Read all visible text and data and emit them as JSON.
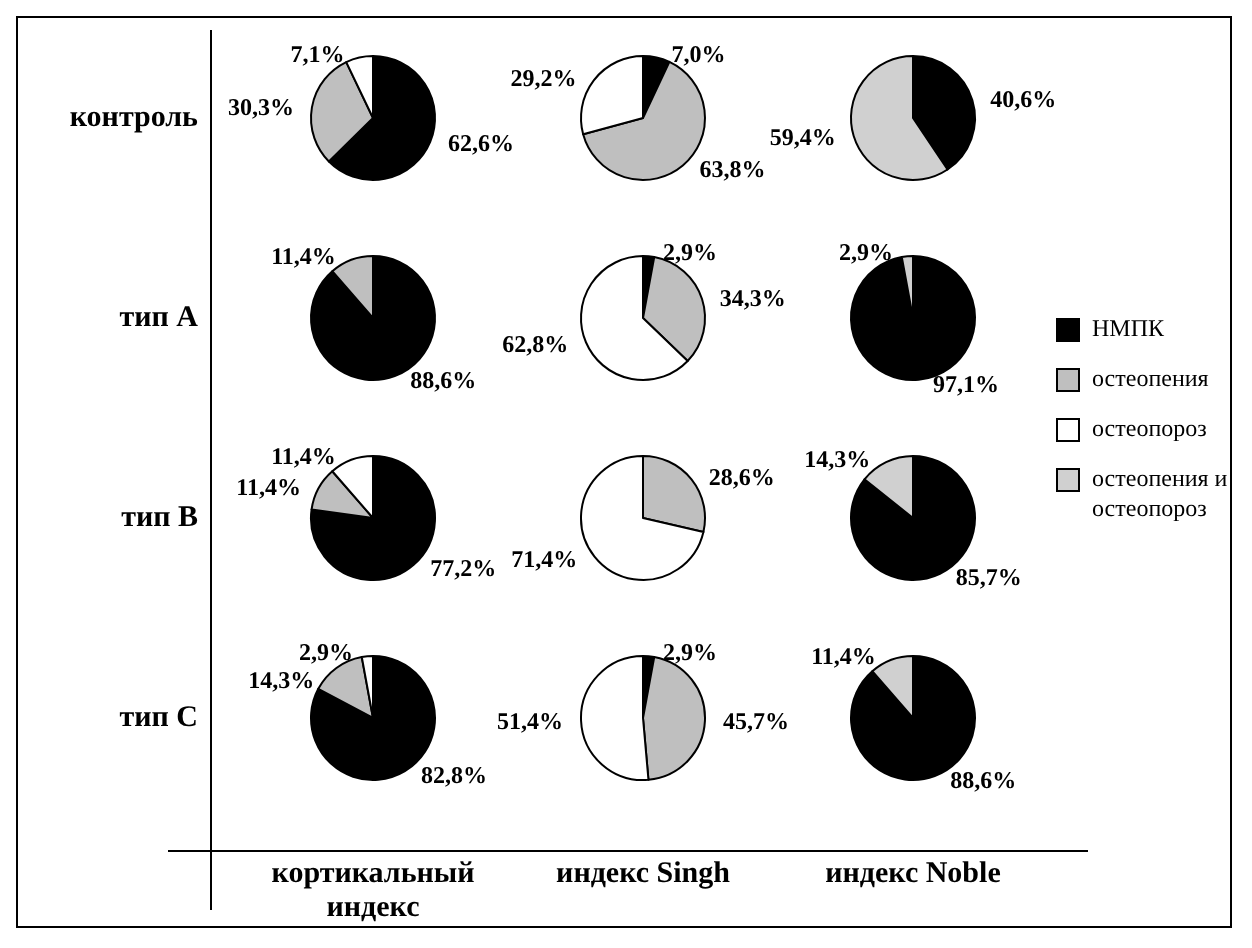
{
  "chart_data": [
    {
      "type": "pie",
      "ylabel": "контроль",
      "legend": "right",
      "categories": [
        "НМПК",
        "остеопения",
        "остеопороз",
        "остеопения и остеопороз"
      ],
      "colors": [
        "#000000",
        "#bfbfbf",
        "#ffffff",
        "#d0d0d0"
      ],
      "values": [
        62.6,
        30.3,
        7.1,
        null
      ],
      "value_labels": [
        "62,6%",
        "30,3%",
        "7,1%",
        null
      ]
    },
    {
      "type": "pie",
      "categories": [
        null,
        null,
        null,
        null
      ],
      "colors": [
        "#000000",
        "#bfbfbf",
        "#ffffff",
        "#d0d0d0"
      ],
      "values": [
        7.0,
        63.8,
        29.2,
        null
      ],
      "value_labels": [
        "7,0%",
        "63,8%",
        "29,2%",
        null
      ]
    },
    {
      "type": "pie",
      "categories": [
        null,
        null,
        null,
        null
      ],
      "colors": [
        "#000000",
        "#bfbfbf",
        "#ffffff",
        "#d0d0d0"
      ],
      "values": [
        40.6,
        null,
        null,
        59.4
      ],
      "value_labels": [
        "40,6%",
        null,
        null,
        "59,4%"
      ]
    },
    {
      "type": "pie",
      "ylabel": "тип А",
      "categories": [
        null,
        null,
        null,
        null
      ],
      "colors": [
        "#000000",
        "#bfbfbf",
        "#ffffff",
        "#d0d0d0"
      ],
      "values": [
        88.6,
        11.4,
        null,
        null
      ],
      "value_labels": [
        "88,6%",
        "11,4%",
        null,
        null
      ]
    },
    {
      "type": "pie",
      "categories": [
        null,
        null,
        null,
        null
      ],
      "colors": [
        "#000000",
        "#bfbfbf",
        "#ffffff",
        "#d0d0d0"
      ],
      "values": [
        2.9,
        34.3,
        62.8,
        null
      ],
      "value_labels": [
        "2,9%",
        "34,3%",
        "62,8%",
        null
      ]
    },
    {
      "type": "pie",
      "categories": [
        null,
        null,
        null,
        null
      ],
      "colors": [
        "#000000",
        "#bfbfbf",
        "#ffffff",
        "#d0d0d0"
      ],
      "values": [
        97.1,
        null,
        null,
        2.9
      ],
      "value_labels": [
        "97,1%",
        null,
        null,
        "2,9%"
      ]
    },
    {
      "type": "pie",
      "ylabel": "тип В",
      "categories": [
        null,
        null,
        null,
        null
      ],
      "colors": [
        "#000000",
        "#bfbfbf",
        "#ffffff",
        "#d0d0d0"
      ],
      "values": [
        77.2,
        11.4,
        11.4,
        null
      ],
      "value_labels": [
        "77,2%",
        "11,4%",
        "11,4%",
        null
      ]
    },
    {
      "type": "pie",
      "categories": [
        null,
        null,
        null,
        null
      ],
      "colors": [
        "#000000",
        "#bfbfbf",
        "#ffffff",
        "#d0d0d0"
      ],
      "values": [
        null,
        28.6,
        71.4,
        null
      ],
      "value_labels": [
        null,
        "28,6%",
        "71,4%",
        null
      ]
    },
    {
      "type": "pie",
      "categories": [
        null,
        null,
        null,
        null
      ],
      "colors": [
        "#000000",
        "#bfbfbf",
        "#ffffff",
        "#d0d0d0"
      ],
      "values": [
        85.7,
        null,
        null,
        14.3
      ],
      "value_labels": [
        "85,7%",
        null,
        null,
        "14,3%"
      ]
    },
    {
      "type": "pie",
      "ylabel": "тип С",
      "xlabel": "кортикальный индекс",
      "categories": [
        null,
        null,
        null,
        null
      ],
      "colors": [
        "#000000",
        "#bfbfbf",
        "#ffffff",
        "#d0d0d0"
      ],
      "values": [
        82.8,
        14.3,
        2.9,
        null
      ],
      "value_labels": [
        "82,8%",
        "14,3%",
        "2,9%",
        null
      ]
    },
    {
      "type": "pie",
      "xlabel": "индекс Singh",
      "categories": [
        null,
        null,
        null,
        null
      ],
      "colors": [
        "#000000",
        "#bfbfbf",
        "#ffffff",
        "#d0d0d0"
      ],
      "values": [
        2.9,
        45.7,
        51.4,
        null
      ],
      "value_labels": [
        "2,9%",
        "45,7%",
        "51,4%",
        null
      ]
    },
    {
      "type": "pie",
      "xlabel": "индекс Noble",
      "categories": [
        null,
        null,
        null,
        null
      ],
      "colors": [
        "#000000",
        "#bfbfbf",
        "#ffffff",
        "#d0d0d0"
      ],
      "values": [
        88.6,
        null,
        null,
        11.4
      ],
      "value_labels": [
        "88,6%",
        null,
        null,
        "11,4%"
      ]
    }
  ]
}
